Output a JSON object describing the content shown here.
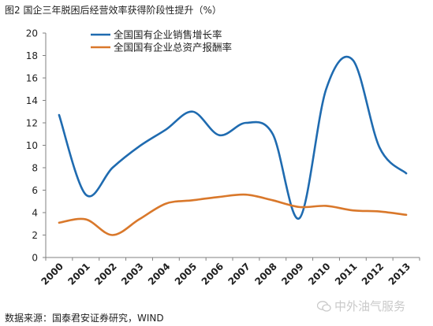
{
  "page": {
    "title": "图2 国企三年脱困后经营效率获得阶段性提升（%）",
    "source": "数据来源：国泰君安证券研究，WIND",
    "watermark": "中外油气服务"
  },
  "chart_data": {
    "type": "line",
    "x": [
      "2000",
      "2001",
      "2002",
      "2003",
      "2004",
      "2005",
      "2006",
      "2007",
      "2008",
      "2009",
      "2010",
      "2011",
      "2012",
      "2013"
    ],
    "ylim": [
      0,
      20
    ],
    "yticks": [
      0,
      2,
      4,
      6,
      8,
      10,
      12,
      14,
      16,
      18,
      20
    ],
    "grid": false,
    "legend_position": "top-center",
    "series": [
      {
        "name": "全国国有企业销售增长率",
        "color": "#1f6bb0",
        "values": [
          12.7,
          5.6,
          8.0,
          9.9,
          11.4,
          13.0,
          10.9,
          12.0,
          11.0,
          3.5,
          15.0,
          17.6,
          9.8,
          7.5
        ]
      },
      {
        "name": "全国国有企业总资产报酬率",
        "color": "#d9782b",
        "values": [
          3.1,
          3.4,
          2.0,
          3.4,
          4.8,
          5.1,
          5.4,
          5.6,
          5.1,
          4.5,
          4.6,
          4.2,
          4.1,
          3.8
        ]
      }
    ]
  }
}
